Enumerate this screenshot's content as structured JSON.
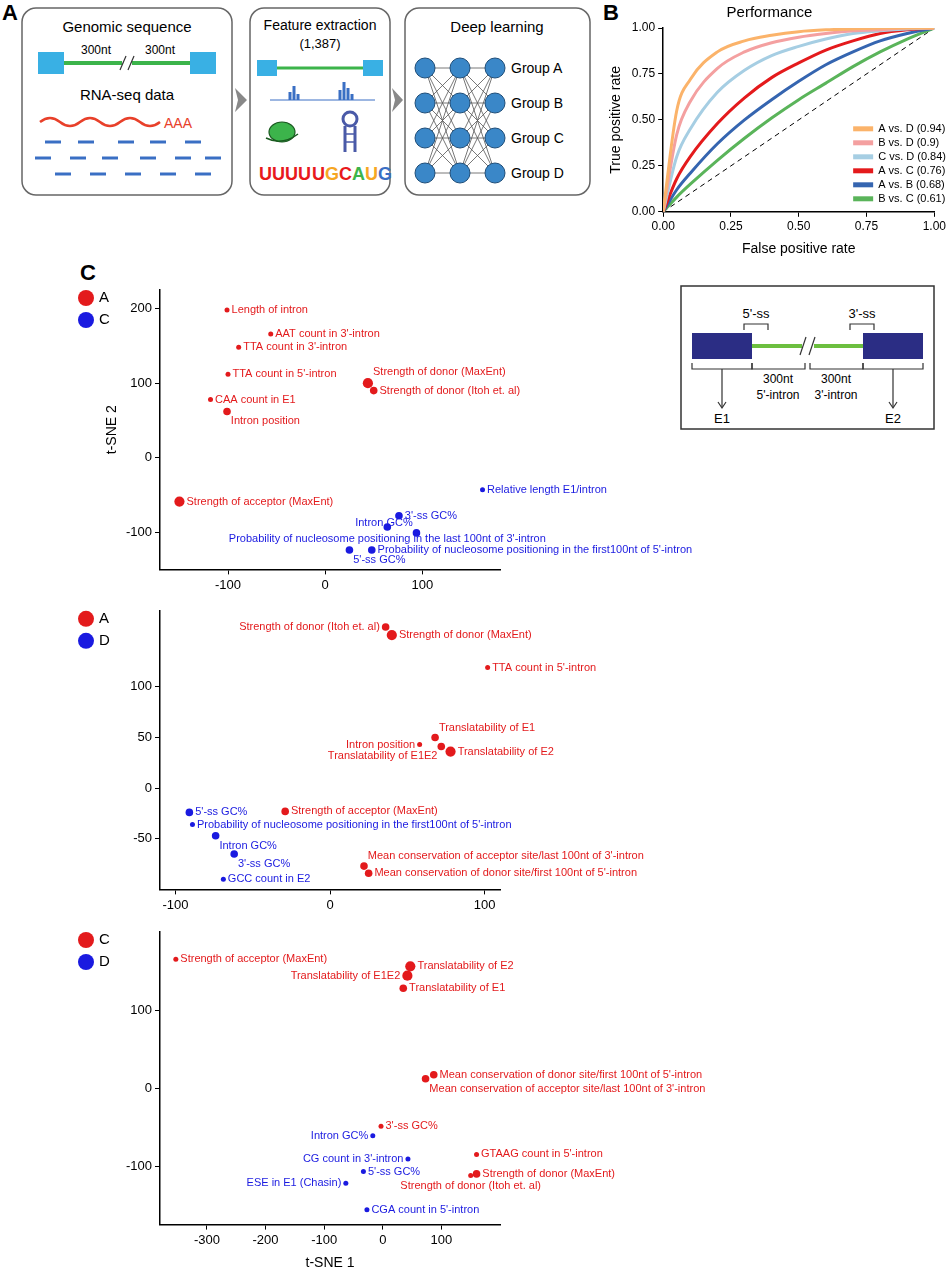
{
  "diagram": {
    "panel": "A",
    "steps": [
      {
        "title": "Genomic sequence",
        "labels": [
          "300nt",
          "300nt"
        ],
        "subtitle": "RNA-seq data",
        "tail": "AAA"
      },
      {
        "title": "Feature extraction",
        "count": "(1,387)",
        "motifs": [
          "UUUU",
          "UGCAUG"
        ]
      },
      {
        "title": "Deep learning",
        "outputs": [
          "Group A",
          "Group B",
          "Group C",
          "Group D"
        ]
      }
    ]
  },
  "chart_data": [
    {
      "panel": "B",
      "type": "line",
      "title": "Performance",
      "x_label": "False positive rate",
      "y_label": "True positive rate",
      "xlim": [
        0,
        1
      ],
      "ylim": [
        0,
        1
      ],
      "xticks": [
        {
          "value": 0,
          "label": "0.00"
        },
        {
          "value": 0.25,
          "label": "0.25"
        },
        {
          "value": 0.5,
          "label": "0.50"
        },
        {
          "value": 0.75,
          "label": "0.75"
        },
        {
          "value": 1,
          "label": "1.00"
        }
      ],
      "yticks": [
        {
          "value": 0,
          "label": "0.00"
        },
        {
          "value": 0.25,
          "label": "0.25"
        },
        {
          "value": 0.5,
          "label": "0.50"
        },
        {
          "value": 0.75,
          "label": "0.75"
        },
        {
          "value": 1,
          "label": "1.00"
        }
      ],
      "grid": false,
      "legend": "lower right",
      "series": [
        {
          "name": "A vs. D (0.94)",
          "color": "#fbb36a",
          "x": [
            0,
            0.05,
            0.1,
            0.2,
            0.3,
            0.4,
            0.5,
            0.6,
            0.7,
            0.8,
            0.9,
            1
          ],
          "values": [
            0,
            0.55,
            0.72,
            0.87,
            0.93,
            0.96,
            0.98,
            0.99,
            0.995,
            1,
            1,
            1
          ]
        },
        {
          "name": "B vs. D (0.9)",
          "color": "#f4a0a0",
          "x": [
            0,
            0.05,
            0.1,
            0.2,
            0.3,
            0.4,
            0.5,
            0.6,
            0.7,
            0.8,
            0.9,
            1
          ],
          "values": [
            0,
            0.42,
            0.6,
            0.78,
            0.87,
            0.92,
            0.95,
            0.97,
            0.985,
            0.99,
            1,
            1
          ]
        },
        {
          "name": "C vs. D (0.84)",
          "color": "#a6cee3",
          "x": [
            0,
            0.05,
            0.1,
            0.2,
            0.3,
            0.4,
            0.5,
            0.6,
            0.7,
            0.8,
            0.9,
            1
          ],
          "values": [
            0,
            0.3,
            0.45,
            0.65,
            0.77,
            0.85,
            0.9,
            0.94,
            0.97,
            0.985,
            0.995,
            1
          ]
        },
        {
          "name": "A vs. C (0.76)",
          "color": "#e41a1c",
          "x": [
            0,
            0.05,
            0.1,
            0.2,
            0.3,
            0.4,
            0.5,
            0.6,
            0.7,
            0.8,
            0.9,
            1
          ],
          "values": [
            0,
            0.18,
            0.3,
            0.48,
            0.62,
            0.73,
            0.81,
            0.88,
            0.93,
            0.97,
            0.99,
            1
          ]
        },
        {
          "name": "A vs. B (0.68)",
          "color": "#3565b0",
          "x": [
            0,
            0.05,
            0.1,
            0.2,
            0.3,
            0.4,
            0.5,
            0.6,
            0.7,
            0.8,
            0.9,
            1
          ],
          "values": [
            0,
            0.12,
            0.21,
            0.37,
            0.5,
            0.61,
            0.71,
            0.8,
            0.87,
            0.93,
            0.97,
            1
          ]
        },
        {
          "name": "B vs. C (0.61)",
          "color": "#5ab45a",
          "x": [
            0,
            0.05,
            0.1,
            0.2,
            0.3,
            0.4,
            0.5,
            0.6,
            0.7,
            0.8,
            0.9,
            1
          ],
          "values": [
            0,
            0.08,
            0.15,
            0.28,
            0.4,
            0.51,
            0.61,
            0.7,
            0.79,
            0.87,
            0.94,
            1
          ]
        },
        {
          "color": "#000000",
          "line_style": "dashed",
          "x": [
            0,
            1
          ],
          "values": [
            0,
            1
          ]
        }
      ]
    },
    {
      "panel": "C",
      "type": "scatter",
      "y_label": "t-SNE 2",
      "xlim": [
        -170,
        180
      ],
      "ylim": [
        -150,
        225
      ],
      "xticks": [
        -100,
        0,
        100
      ],
      "yticks": [
        -100,
        0,
        100,
        200
      ],
      "grid": false,
      "legend": "upper left",
      "inset": {
        "sites": [
          "5'-ss",
          "3'-ss"
        ],
        "lengths": [
          "300nt",
          "300nt"
        ],
        "regions": [
          "5'-intron",
          "3'-intron"
        ],
        "exons": [
          "E1",
          "E2"
        ]
      },
      "series": [
        {
          "name": "A",
          "color": "#e31a1c",
          "labels": [
            "Length of intron",
            "AAT count in 3'-intron",
            "TTA count in 3'-intron",
            "TTA count in 5'-intron",
            "Strength of donor (MaxEnt)",
            "Strength of donor (Itoh et. al)",
            "CAA count in E1",
            "Intron position",
            "Strength of acceptor (MaxEnt)"
          ],
          "x": [
            -101,
            -56,
            -89,
            -100,
            44,
            50,
            -118,
            -101,
            -150
          ],
          "y": [
            198,
            166,
            148,
            112,
            100,
            90,
            78,
            62,
            -59
          ],
          "sizes": [
            1,
            1,
            1,
            1,
            3,
            2,
            1,
            2,
            3
          ]
        },
        {
          "name": "C",
          "color": "#1a1ae0",
          "labels": [
            "Relative length E1/intron",
            "3'-ss GC%",
            "Probability of nucleosome positioning in the last 100nt of 3'-intron",
            "Intron GC%",
            "5'-ss GC%",
            "Probability of nucleosome positioning in the first100nt of 5'-intron"
          ],
          "x": [
            162,
            76,
            64,
            94,
            25,
            48
          ],
          "y": [
            -43,
            -78,
            -93,
            -101,
            -124,
            -124
          ],
          "sizes": [
            1,
            2,
            2,
            2,
            2,
            2
          ]
        }
      ]
    },
    {
      "type": "scatter",
      "xlim": [
        -110,
        110
      ],
      "ylim": [
        -100,
        175
      ],
      "xticks": [
        -100,
        0,
        100
      ],
      "yticks": [
        -50,
        0,
        50,
        100
      ],
      "grid": false,
      "legend": "upper left",
      "series": [
        {
          "name": "A",
          "color": "#e31a1c",
          "labels": [
            "Strength of donor (Itoh et. al)",
            "Strength of donor (MaxEnt)",
            "TTA count in 5'-intron",
            "Translatability of E1",
            "Intron position",
            "Translatability of E1E2",
            "Translatability of E2",
            "Strength of acceptor (MaxEnt)",
            "Mean conservation of acceptor site/last 100nt of 3'-intron",
            "Mean conservation of donor site/first 100nt of 5'-intron"
          ],
          "x": [
            36,
            40,
            102,
            68,
            58,
            72,
            78,
            -29,
            22,
            25
          ],
          "y": [
            159,
            151,
            119,
            50,
            43,
            41,
            36,
            -23,
            -77,
            -84
          ],
          "sizes": [
            2,
            3,
            1,
            2,
            1,
            2,
            3,
            2,
            2,
            2
          ]
        },
        {
          "name": "D",
          "color": "#1a1ae0",
          "labels": [
            "5'-ss GC%",
            "Probability of nucleosome positioning in the first100nt of 5'-intron",
            "Intron GC%",
            "3'-ss GC%",
            "GCC count in E2"
          ],
          "x": [
            -91,
            -89,
            -74,
            -62,
            -69
          ],
          "y": [
            -24,
            -36,
            -47,
            -65,
            -90
          ],
          "sizes": [
            2,
            1,
            2,
            2,
            1
          ]
        }
      ]
    },
    {
      "type": "scatter",
      "x_label": "t-SNE 1",
      "xlim": [
        -380,
        200
      ],
      "ylim": [
        -175,
        200
      ],
      "xticks": [
        -300,
        -200,
        -100,
        0,
        100
      ],
      "yticks": [
        -100,
        0,
        100
      ],
      "grid": false,
      "legend": "upper left",
      "series": [
        {
          "name": "C",
          "color": "#e31a1c",
          "labels": [
            "Strength of acceptor (MaxEnt)",
            "Translatability of E2",
            "Translatability of E1E2",
            "Translatability of E1",
            "Mean conservation of donor site/first 100nt of 5'-intron",
            "Mean conservation of acceptor site/last 100nt of 3'-intron",
            "3'-ss GC%",
            "GTAAG count in 5'-intron",
            "Strength of donor (MaxEnt)",
            "Strength of donor (Itoh et. al)"
          ],
          "x": [
            -353,
            47,
            42,
            35,
            87,
            73,
            -3,
            160,
            160,
            150
          ],
          "y": [
            165,
            156,
            144,
            128,
            17,
            12,
            -49,
            -85,
            -110,
            -112
          ],
          "sizes": [
            1,
            3,
            3,
            2,
            2,
            2,
            1,
            1,
            2,
            1
          ]
        },
        {
          "name": "D",
          "color": "#1a1ae0",
          "labels": [
            "Intron GC%",
            "CG count in 3'-intron",
            "5'-ss GC%",
            "ESE in E1 (Chasin)",
            "CGA count in 5'-intron"
          ],
          "x": [
            -17,
            43,
            -33,
            -63,
            -27
          ],
          "y": [
            -61,
            -91,
            -107,
            -122,
            -156
          ],
          "sizes": [
            1,
            1,
            1,
            1,
            1
          ]
        }
      ]
    }
  ]
}
